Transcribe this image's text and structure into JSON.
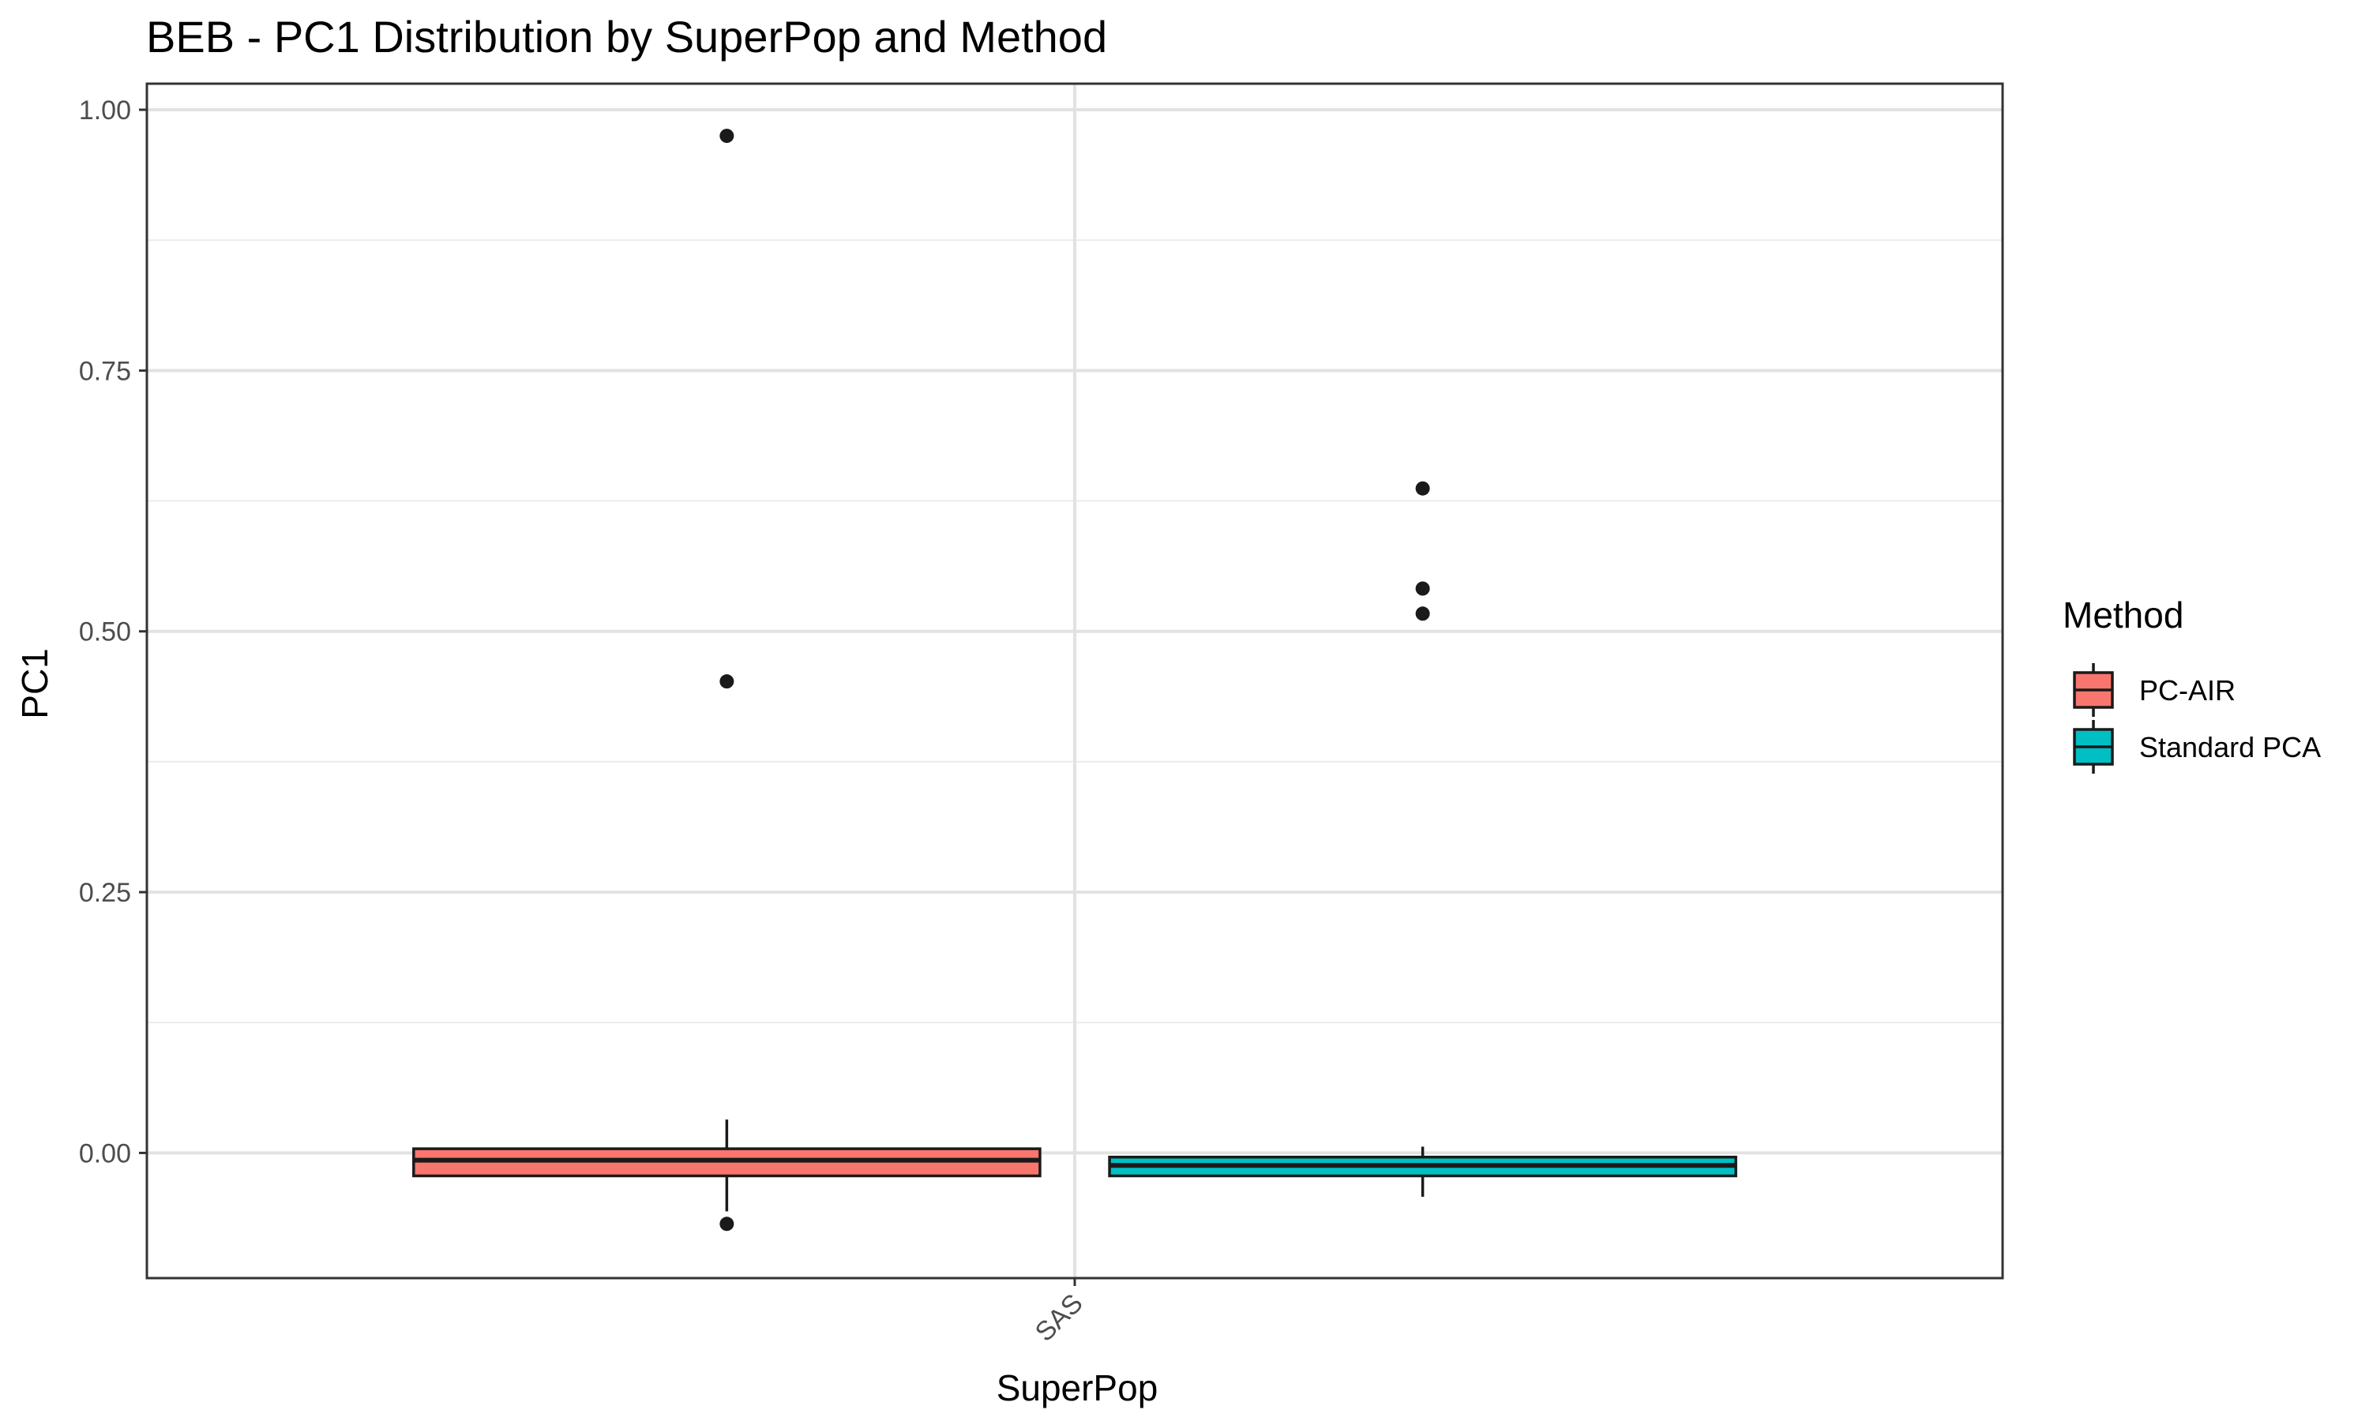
{
  "chart_data": {
    "type": "boxplot",
    "title": "BEB - PC1 Distribution by SuperPop and Method",
    "xlabel": "SuperPop",
    "ylabel": "PC1",
    "categories": [
      "SAS"
    ],
    "yticks": [
      "0.00",
      "0.25",
      "0.50",
      "0.75",
      "1.00"
    ],
    "ylim": [
      -0.12,
      1.025
    ],
    "grid": true,
    "legend": {
      "title": "Method",
      "position": "right"
    },
    "series": [
      {
        "name": "PC-AIR",
        "color": "#F8766D",
        "category": "SAS",
        "q1": -0.022,
        "median": -0.007,
        "q3": 0.004,
        "whisker_low": -0.056,
        "whisker_high": 0.032,
        "outliers": [
          0.975,
          0.452,
          -0.068
        ]
      },
      {
        "name": "Standard PCA",
        "color": "#00BFC4",
        "category": "SAS",
        "q1": -0.022,
        "median": -0.012,
        "q3": -0.004,
        "whisker_low": -0.042,
        "whisker_high": 0.006,
        "outliers": [
          0.637,
          0.541,
          0.517
        ]
      }
    ]
  }
}
